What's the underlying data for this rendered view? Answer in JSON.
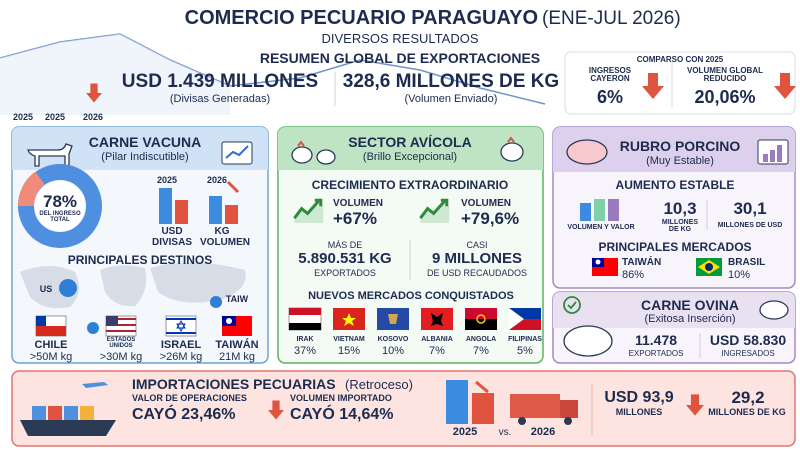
{
  "header": {
    "title": "COMERCIO PECUARIO PARAGUAYO",
    "period": "(ENE-JUL 2026)",
    "subtitle": "DIVERSOS RESULTADOS",
    "summary_title": "RESUMEN GLOBAL DE EXPORTACIONES",
    "trend_years": [
      "2025",
      "2025",
      "2026"
    ],
    "kpis": [
      {
        "value": "USD 1.439 MILLONES",
        "note": "(Divisas Generadas)"
      },
      {
        "value": "328,6 MILLONES DE KG",
        "note": "(Volumen Enviado)"
      }
    ],
    "comparison": {
      "title": "COMPARSO CON 2025",
      "items": [
        {
          "label": "INGRESOS CAYERON",
          "value": "6%"
        },
        {
          "label": "VOLUMEN GLOBAL REDUCIDO",
          "value": "20,06%"
        }
      ]
    }
  },
  "beef": {
    "title": "CARNE VACUNA",
    "subtitle": "(Pilar Indiscutible)",
    "share": "78%",
    "share_label": "DEL INGRESO TOTAL",
    "compare": [
      {
        "year": "2025",
        "label": "USD DIVISAS"
      },
      {
        "year": "2026",
        "label": "KG VOLUMEN"
      }
    ],
    "destinations_title": "PRINCIPALES DESTINOS",
    "map_labels": [
      "US",
      "TAIW"
    ],
    "destinations": [
      {
        "name": "CHILE",
        "value": ">50M kg"
      },
      {
        "name": "ESTADOS UNIDOS",
        "value": ">30M kg"
      },
      {
        "name": "ISRAEL",
        "value": ">26M kg"
      },
      {
        "name": "TAIWÁN",
        "value": "21M kg"
      }
    ]
  },
  "poultry": {
    "title": "SECTOR AVÍCOLA",
    "subtitle": "(Brillo Excepcional)",
    "growth_title": "CRECIMIENTO EXTRAORDINARIO",
    "growth": [
      {
        "label": "VOLUMEN",
        "value": "+67%"
      },
      {
        "label": "VOLUMEN",
        "value": "+79,6%"
      }
    ],
    "volume": {
      "prefix": "MÁS DE",
      "value": "5.890.531 KG",
      "suffix": "EXPORTADOS"
    },
    "revenue": {
      "prefix": "CASI",
      "value": "9 MILLONES",
      "suffix": "DE USD RECAUDADOS"
    },
    "markets_title": "NUEVOS MERCADOS CONQUISTADOS",
    "markets": [
      {
        "name": "IRAK",
        "value": "37%"
      },
      {
        "name": "VIETNAM",
        "value": "15%"
      },
      {
        "name": "KOSOVO",
        "value": "10%"
      },
      {
        "name": "ALBANIA",
        "value": "7%"
      },
      {
        "name": "ANGOLA",
        "value": "7%"
      },
      {
        "name": "FILIPINAS",
        "value": "5%"
      }
    ]
  },
  "pork": {
    "title": "RUBRO PORCINO",
    "subtitle": "(Muy Estable)",
    "growth_title": "AUMENTO ESTABLE",
    "chart_label": "VOLUMEN Y VALOR",
    "stats": [
      {
        "value": "10,3",
        "unit": "MILLONES DE KG"
      },
      {
        "value": "30,1",
        "unit": "MILLONES DE USD"
      }
    ],
    "markets_title": "PRINCIPALES MERCADOS",
    "markets": [
      {
        "name": "TAIWÁN",
        "value": "86%"
      },
      {
        "name": "BRASIL",
        "value": "10%"
      }
    ]
  },
  "sheep": {
    "title": "CARNE OVINA",
    "subtitle": "(Exitosa Inserción)",
    "stats": [
      {
        "value": "11.478",
        "unit": "EXPORTADOS"
      },
      {
        "value": "USD 58.830",
        "unit": "INGRESADOS"
      }
    ]
  },
  "imports": {
    "title": "IMPORTACIONES PECUARIAS",
    "subtitle": "(Retroceso)",
    "drops": [
      {
        "label": "VALOR DE OPERACIONES",
        "value": "CAYÓ 23,46%"
      },
      {
        "label": "VOLUMEN IMPORTADO",
        "value": "CAYÓ 14,64%"
      }
    ],
    "years": [
      "2025",
      "2026"
    ],
    "vs": "vs.",
    "stats": [
      {
        "value": "USD 93,9",
        "unit": "MILLONES"
      },
      {
        "value": "29,2",
        "unit": "MILLONES DE KG"
      }
    ]
  }
}
